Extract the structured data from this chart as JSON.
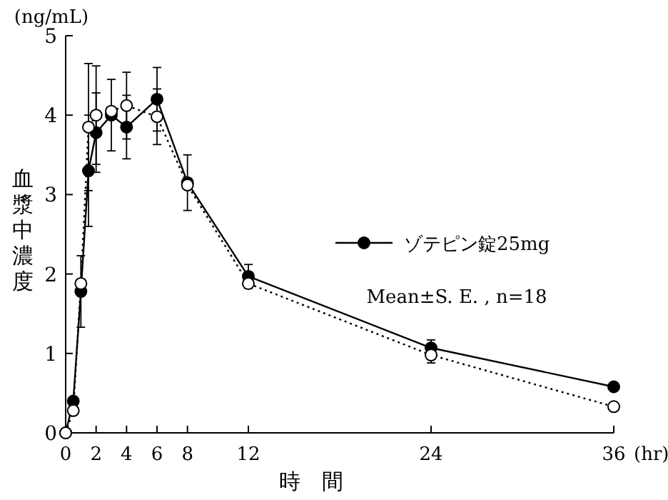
{
  "chart_data": {
    "type": "line",
    "ylabel": "血漿中濃度",
    "xlabel": "時　間",
    "annotations": [
      "(ng/mL)",
      "(hr)",
      "Mean±S. E. , n=18"
    ],
    "x": [
      0,
      0.5,
      1,
      1.5,
      2,
      3,
      4,
      6,
      8,
      12,
      24,
      36
    ],
    "series": [
      {
        "name": "ゾテピン錠25mg",
        "color": "#000000",
        "line_style": "solid",
        "values": [
          0,
          0.4,
          1.78,
          3.3,
          3.78,
          4.0,
          3.85,
          4.2,
          3.15,
          1.97,
          1.07,
          0.58
        ],
        "errors": [
          null,
          null,
          0.45,
          0.7,
          0.5,
          0.45,
          0.4,
          0.4,
          0.35,
          0.15,
          0.1,
          0.05
        ]
      },
      {
        "color": "#000000",
        "line_style": "dotted",
        "values": [
          0,
          0.28,
          1.88,
          3.85,
          4.0,
          4.05,
          4.12,
          3.98,
          3.12,
          1.88,
          0.98,
          0.33
        ],
        "errors": [
          null,
          null,
          null,
          0.8,
          0.62,
          null,
          0.42,
          0.35,
          null,
          null,
          0.1,
          null
        ]
      }
    ],
    "marker": "circle",
    "xlim": [
      0,
      36
    ],
    "xticks": [
      0,
      2,
      4,
      6,
      8,
      12,
      24,
      36
    ],
    "ylim": [
      0,
      5
    ],
    "yticks": [
      0,
      1,
      2,
      3,
      4,
      5
    ],
    "grid": false,
    "legend": "right"
  }
}
